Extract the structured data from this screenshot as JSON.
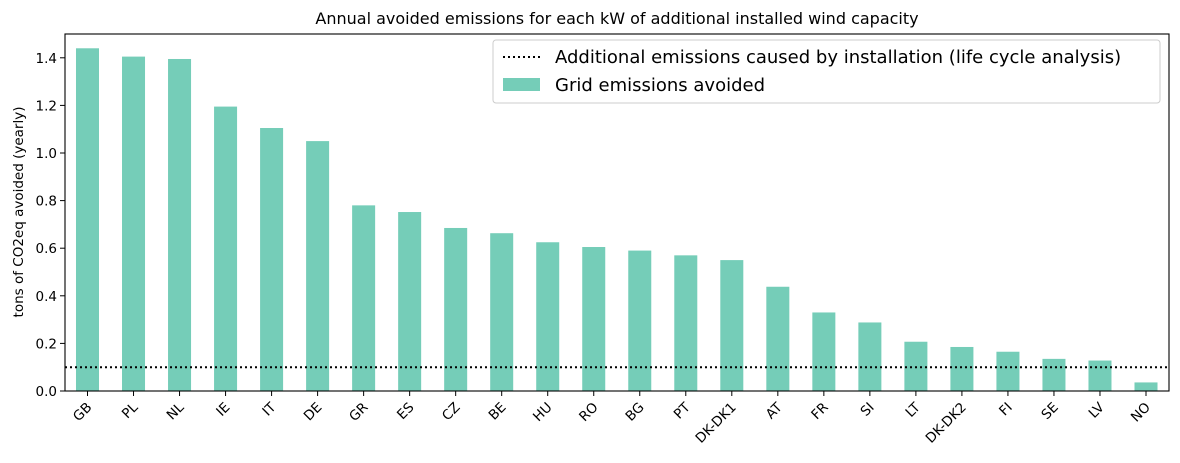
{
  "chart_data": {
    "type": "bar",
    "title": "Annual avoided emissions for each kW of additional installed wind capacity",
    "xlabel": "",
    "ylabel": "tons of CO2eq avoided (yearly)",
    "ylim": [
      0,
      1.5
    ],
    "yticks": [
      "0.0",
      "0.2",
      "0.4",
      "0.6",
      "0.8",
      "1.0",
      "1.2",
      "1.4"
    ],
    "categories": [
      "GB",
      "PL",
      "NL",
      "IE",
      "IT",
      "DE",
      "GR",
      "ES",
      "CZ",
      "BE",
      "HU",
      "RO",
      "BG",
      "PT",
      "DK-DK1",
      "AT",
      "FR",
      "SI",
      "LT",
      "DK-DK2",
      "FI",
      "SE",
      "LV",
      "NO"
    ],
    "series": [
      {
        "name": "Grid emissions avoided",
        "color": "#75cdb8",
        "values": [
          1.44,
          1.405,
          1.395,
          1.195,
          1.105,
          1.05,
          0.78,
          0.752,
          0.685,
          0.663,
          0.625,
          0.605,
          0.59,
          0.57,
          0.55,
          0.438,
          0.33,
          0.288,
          0.207,
          0.185,
          0.165,
          0.135,
          0.128,
          0.036
        ]
      }
    ],
    "reference_line": {
      "name": "Additional emissions caused by installation (life cycle analysis)",
      "value": 0.1,
      "style": "dotted",
      "color": "#000000"
    },
    "grid": false,
    "legend_position": "top-right",
    "x_tick_rotation": 45
  }
}
